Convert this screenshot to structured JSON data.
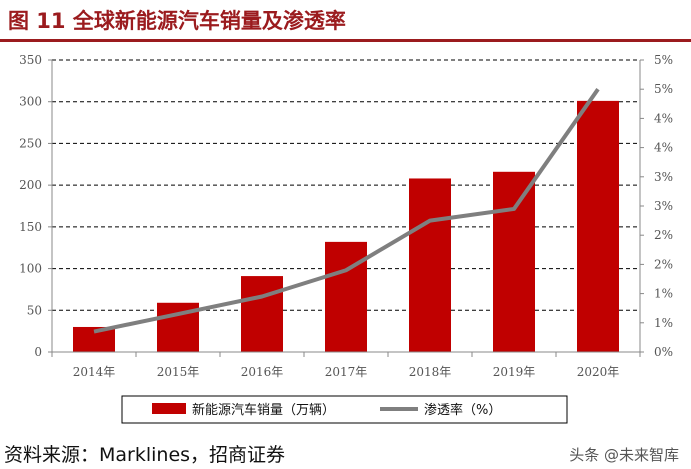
{
  "title": "图 11  全球新能源汽车销量及渗透率",
  "source": "资料来源：Marklines，招商证券",
  "watermark": "头条 @未来智库",
  "chart_data": {
    "type": "bar",
    "categories": [
      "2014年",
      "2015年",
      "2016年",
      "2017年",
      "2018年",
      "2019年",
      "2020年"
    ],
    "series": [
      {
        "name": "新能源汽车销量（万辆）",
        "type": "bar",
        "axis": "left",
        "values": [
          30,
          59,
          91,
          132,
          208,
          216,
          301
        ],
        "color": "#c00000"
      },
      {
        "name": "渗透率（%）",
        "type": "line",
        "axis": "right",
        "values": [
          0.35,
          0.65,
          0.95,
          1.4,
          2.25,
          2.45,
          4.5
        ],
        "color": "#7f7f7f"
      }
    ],
    "ylim": [
      0,
      350
    ],
    "y2lim": [
      0,
      5
    ],
    "yticks": [
      "0",
      "50",
      "100",
      "150",
      "200",
      "250",
      "300",
      "350"
    ],
    "y2ticks": [
      "0%",
      "1%",
      "1%",
      "2%",
      "2%",
      "3%",
      "3%",
      "4%",
      "4%",
      "5%",
      "5%"
    ],
    "grid": "dashed horizontal",
    "legend_position": "bottom"
  }
}
